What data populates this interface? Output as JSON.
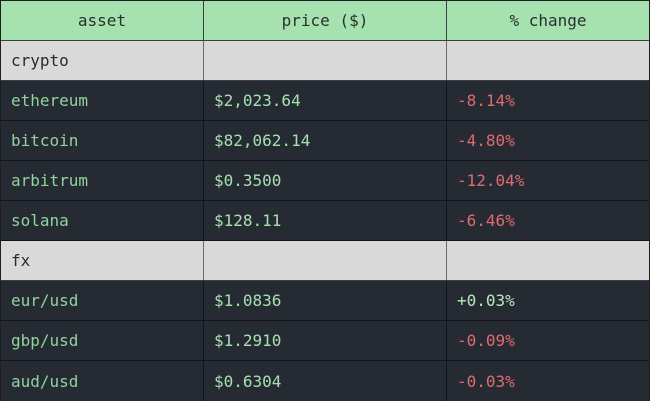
{
  "columns": {
    "asset": "asset",
    "price": "price ($)",
    "change": "% change"
  },
  "colors": {
    "header_bg": "#a6e2af",
    "group_bg": "#d9d9d9",
    "row_bg": "#262b33",
    "negative": "#e06a6e",
    "positive": "#b8e8c0",
    "asset_text": "#90d3a0"
  },
  "groups": [
    {
      "name": "crypto",
      "rows": [
        {
          "asset": "ethereum",
          "price": "$2,023.64",
          "change": "-8.14%"
        },
        {
          "asset": "bitcoin",
          "price": "$82,062.14",
          "change": "-4.80%"
        },
        {
          "asset": "arbitrum",
          "price": "$0.3500",
          "change": "-12.04%"
        },
        {
          "asset": "solana",
          "price": "$128.11",
          "change": "-6.46%"
        }
      ]
    },
    {
      "name": "fx",
      "rows": [
        {
          "asset": "eur/usd",
          "price": "$1.0836",
          "change": "+0.03%"
        },
        {
          "asset": "gbp/usd",
          "price": "$1.2910",
          "change": "-0.09%"
        },
        {
          "asset": "aud/usd",
          "price": "$0.6304",
          "change": "-0.03%"
        }
      ]
    }
  ]
}
